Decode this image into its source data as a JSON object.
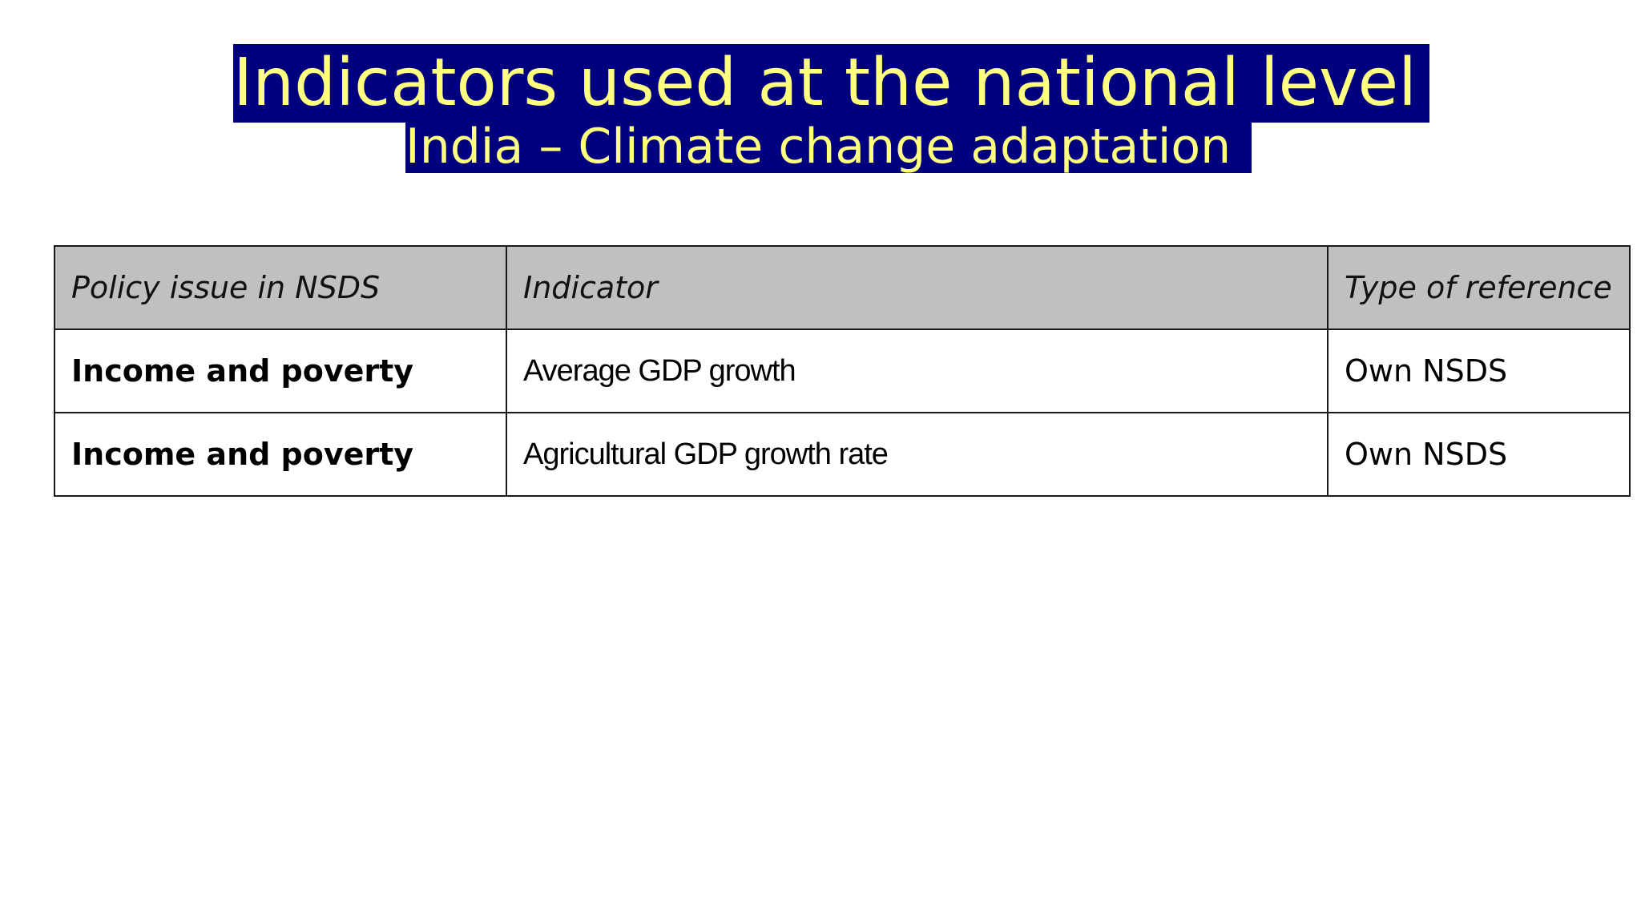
{
  "slide": {
    "title": "Indicators used at the national level",
    "subtitle": "India – Climate change adaptation"
  },
  "colors": {
    "title_background": "#00007f",
    "title_text": "#ffff80",
    "header_background": "#c0bfc1"
  },
  "table": {
    "headers": {
      "policy_issue": "Policy issue in NSDS",
      "indicator": "Indicator",
      "type_of_reference": "Type of reference"
    },
    "rows": [
      {
        "policy_issue": "Income and poverty",
        "indicator": "Average GDP growth",
        "type_of_reference": "Own NSDS"
      },
      {
        "policy_issue": "Income and poverty",
        "indicator": "Agricultural GDP growth rate",
        "type_of_reference": "Own NSDS"
      }
    ]
  }
}
